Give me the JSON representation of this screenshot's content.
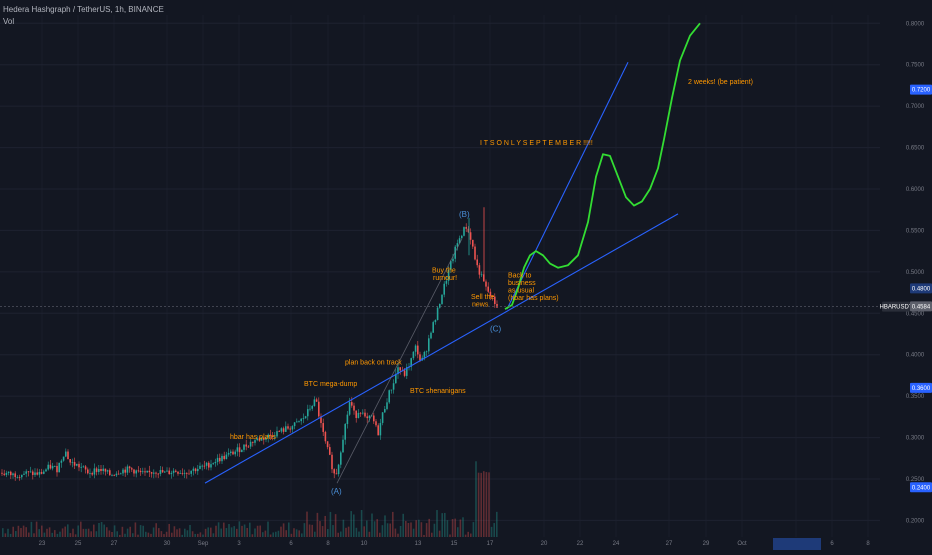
{
  "header": {
    "symbol_line": "Hedera Hashgraph / TetherUS, 1h, BINANCE",
    "indicator": "Vol"
  },
  "colors": {
    "background": "#131722",
    "grid": "#1e2230",
    "trendline": "#2962ff",
    "projection": "#33dd33",
    "annotation": "#ff9800",
    "wave_label": "#4a90d9",
    "candle_up": "#26a69a",
    "candle_down": "#ef5350",
    "price_badge": "#2962ff"
  },
  "chart_data": {
    "type": "line",
    "xlabel": "",
    "ylabel": "",
    "x_tick_labels": [
      "23",
      "25",
      "27",
      "30",
      "Sep",
      "3",
      "6",
      "8",
      "10",
      "13",
      "15",
      "17",
      "20",
      "22",
      "24",
      "27",
      "29",
      "Oct",
      "4",
      "6",
      "8"
    ],
    "y_tick_labels": [
      "0.8000",
      "0.7500",
      "0.7000",
      "0.6500",
      "0.6000",
      "0.5500",
      "0.5000",
      "0.4500",
      "0.4000",
      "0.3500",
      "0.3000",
      "0.2500",
      "0.2000"
    ],
    "ylim": [
      0.18,
      0.81
    ],
    "grid": true,
    "price_badges": [
      {
        "label": "0.7200",
        "value": 0.72
      },
      {
        "label": "0.4800",
        "value": 0.48
      },
      {
        "label": "HBARUSDT",
        "value": 0.458
      },
      {
        "label": "0.4584",
        "value": 0.4584
      },
      {
        "label": "0.3600",
        "value": 0.36
      },
      {
        "label": "0.2400",
        "value": 0.24
      }
    ],
    "price_path": [
      [
        0,
        0.258
      ],
      [
        12,
        0.255
      ],
      [
        25,
        0.257
      ],
      [
        40,
        0.256
      ],
      [
        50,
        0.265
      ],
      [
        57,
        0.262
      ],
      [
        65,
        0.285
      ],
      [
        70,
        0.27
      ],
      [
        80,
        0.265
      ],
      [
        88,
        0.258
      ],
      [
        100,
        0.262
      ],
      [
        110,
        0.255
      ],
      [
        120,
        0.26
      ],
      [
        130,
        0.262
      ],
      [
        145,
        0.255
      ],
      [
        155,
        0.26
      ],
      [
        165,
        0.257
      ],
      [
        175,
        0.26
      ],
      [
        185,
        0.258
      ],
      [
        195,
        0.262
      ],
      [
        205,
        0.265
      ],
      [
        215,
        0.272
      ],
      [
        225,
        0.277
      ],
      [
        235,
        0.283
      ],
      [
        245,
        0.29
      ],
      [
        255,
        0.297
      ],
      [
        265,
        0.3
      ],
      [
        275,
        0.305
      ],
      [
        285,
        0.31
      ],
      [
        295,
        0.315
      ],
      [
        305,
        0.325
      ],
      [
        312,
        0.34
      ],
      [
        316,
        0.345
      ],
      [
        320,
        0.32
      ],
      [
        325,
        0.295
      ],
      [
        330,
        0.275
      ],
      [
        335,
        0.252
      ],
      [
        338,
        0.265
      ],
      [
        342,
        0.295
      ],
      [
        346,
        0.32
      ],
      [
        350,
        0.345
      ],
      [
        355,
        0.325
      ],
      [
        360,
        0.335
      ],
      [
        366,
        0.32
      ],
      [
        372,
        0.325
      ],
      [
        378,
        0.305
      ],
      [
        383,
        0.33
      ],
      [
        388,
        0.35
      ],
      [
        393,
        0.365
      ],
      [
        398,
        0.385
      ],
      [
        404,
        0.375
      ],
      [
        410,
        0.39
      ],
      [
        416,
        0.41
      ],
      [
        421,
        0.39
      ],
      [
        426,
        0.405
      ],
      [
        431,
        0.43
      ],
      [
        436,
        0.445
      ],
      [
        441,
        0.47
      ],
      [
        446,
        0.49
      ],
      [
        451,
        0.51
      ],
      [
        456,
        0.53
      ],
      [
        461,
        0.545
      ],
      [
        466,
        0.555
      ],
      [
        471,
        0.54
      ],
      [
        476,
        0.51
      ],
      [
        481,
        0.495
      ],
      [
        486,
        0.48
      ],
      [
        491,
        0.47
      ],
      [
        495,
        0.462
      ],
      [
        498,
        0.458
      ]
    ],
    "projection": [
      {
        "name": "",
        "points": [
          [
            505,
            0.455
          ],
          [
            512,
            0.46
          ],
          [
            518,
            0.48
          ],
          [
            524,
            0.505
          ],
          [
            530,
            0.52
          ],
          [
            536,
            0.525
          ],
          [
            543,
            0.52
          ],
          [
            550,
            0.51
          ],
          [
            558,
            0.505
          ],
          [
            568,
            0.508
          ],
          [
            578,
            0.52
          ],
          [
            588,
            0.56
          ],
          [
            596,
            0.615
          ],
          [
            603,
            0.642
          ],
          [
            610,
            0.64
          ],
          [
            618,
            0.615
          ],
          [
            626,
            0.59
          ],
          [
            634,
            0.58
          ],
          [
            642,
            0.585
          ],
          [
            650,
            0.6
          ],
          [
            658,
            0.625
          ],
          [
            664,
            0.66
          ],
          [
            672,
            0.71
          ],
          [
            680,
            0.755
          ],
          [
            690,
            0.785
          ],
          [
            700,
            0.8
          ]
        ]
      }
    ],
    "trendlines": [
      {
        "from": [
          205,
          0.245
        ],
        "to": [
          678,
          0.57
        ]
      },
      {
        "from": [
          507,
          0.455
        ],
        "to": [
          628,
          0.753
        ]
      },
      {
        "from": [
          337,
          0.245
        ],
        "to": [
          462,
          0.54
        ]
      }
    ],
    "annotations": [
      {
        "text": "hbar has plans",
        "x": 230,
        "value": 0.298
      },
      {
        "text": "BTC mega-dump",
        "x": 304,
        "value": 0.362
      },
      {
        "text": "plan back on track",
        "x": 345,
        "value": 0.388
      },
      {
        "text": "BTC shenanigans",
        "x": 410,
        "value": 0.354
      },
      {
        "text": "Buy the",
        "x": 432,
        "value": 0.499
      },
      {
        "text": "rumour!",
        "x": 433,
        "value": 0.49
      },
      {
        "text": "Sell the",
        "x": 471,
        "value": 0.467
      },
      {
        "text": "news",
        "x": 472,
        "value": 0.458
      },
      {
        "text": "Back to",
        "x": 508,
        "value": 0.493
      },
      {
        "text": "business",
        "x": 508,
        "value": 0.484
      },
      {
        "text": "as usual",
        "x": 508,
        "value": 0.475
      },
      {
        "text": "(hbar has plans)",
        "x": 508,
        "value": 0.466
      },
      {
        "text": "I  T  S      O  N  L  Y        S  E  P  T  E  M  B  E  R  !!!!!",
        "x": 480,
        "value": 0.653
      },
      {
        "text": "2 weeks! (be patient)",
        "x": 688,
        "value": 0.727
      }
    ],
    "wave_labels": [
      {
        "text": "(A)",
        "x": 331,
        "value": 0.232
      },
      {
        "text": "(B)",
        "x": 459,
        "value": 0.566
      },
      {
        "text": "(C)",
        "x": 490,
        "value": 0.428
      }
    ]
  }
}
